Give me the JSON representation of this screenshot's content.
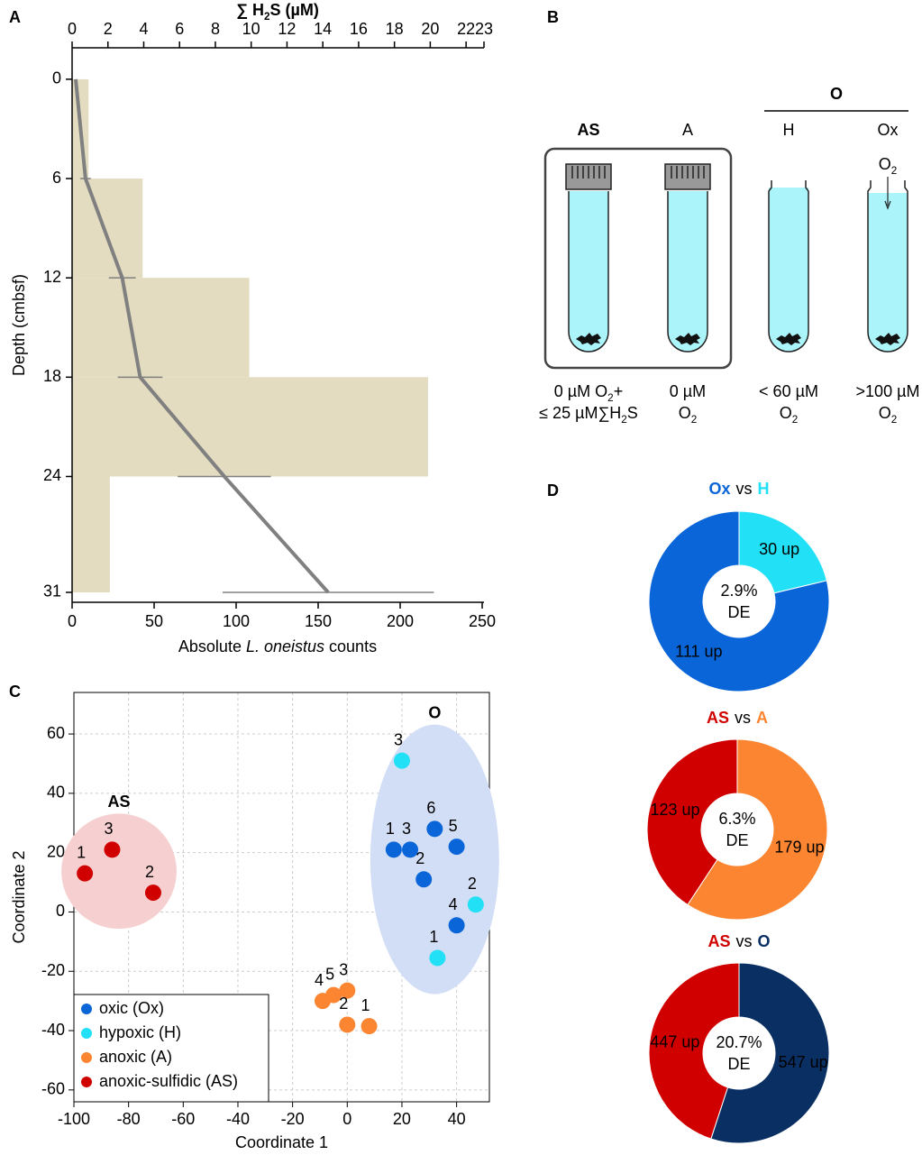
{
  "panel_labels": [
    "A",
    "B",
    "C",
    "D"
  ],
  "chart_data": [
    {
      "type": "depth_profile",
      "x_label": [
        "Absolute ",
        {
          "italic": "L. oneistus"
        },
        " counts"
      ],
      "x2_label": [
        "∑ H",
        {
          "sub": "2"
        },
        "S (µM)"
      ],
      "y_label": "Depth (cmbsf)",
      "bins": [
        0,
        6,
        12,
        18,
        24,
        31
      ],
      "counts": [
        10,
        43,
        108,
        217,
        23
      ],
      "bar_color": "#e3dcc0",
      "xlim": [
        0,
        250
      ],
      "xticks": [
        0,
        50,
        100,
        150,
        200,
        250
      ],
      "x2lim": [
        0,
        23
      ],
      "x2ticks": [
        0,
        2,
        4,
        6,
        8,
        10,
        12,
        14,
        16,
        18,
        20,
        22,
        23
      ],
      "ylim": [
        -1.9,
        31.6
      ],
      "yticks": [
        0,
        6,
        12,
        18,
        24,
        31
      ],
      "y_inverted": true,
      "line": {
        "depth": [
          0,
          6,
          12,
          18,
          24,
          31
        ],
        "values": [
          0.2,
          0.75,
          2.8,
          3.8,
          8.5,
          14.3
        ],
        "errors": [
          0,
          0.3,
          0.75,
          1.25,
          2.6,
          5.9
        ],
        "color": "#808080"
      },
      "x2_color": "#8c8c8c"
    },
    {
      "type": "scatter",
      "x_label": "Coordinate 1",
      "y_label": "Coordinate 2",
      "xlim": [
        -100,
        52
      ],
      "xticks": [
        -100,
        -80,
        -60,
        -40,
        -20,
        0,
        20,
        40
      ],
      "ylim": [
        -64,
        74
      ],
      "yticks": [
        -60,
        -40,
        -20,
        0,
        20,
        40,
        60
      ],
      "grid": true,
      "legend": "bottom-left",
      "series": [
        {
          "name": "oxic (Ox)",
          "color": "#0a66d8",
          "x": [
            17,
            23,
            32,
            40,
            28,
            40
          ],
          "values": [
            21,
            21,
            28,
            22,
            11,
            -4.5
          ],
          "labels": [
            "1",
            "3",
            "6",
            "5",
            "2",
            "4"
          ]
        },
        {
          "name": "hypoxic (H)",
          "color": "#22e0f5",
          "x": [
            20,
            47,
            33
          ],
          "values": [
            51,
            2.5,
            -15.5
          ],
          "labels": [
            "3",
            "2",
            "1"
          ]
        },
        {
          "name": "anoxic (A)",
          "color": "#fb8531",
          "x": [
            -9,
            -5,
            0,
            0,
            8
          ],
          "values": [
            -30,
            -28,
            -26.5,
            -38,
            -38.5
          ],
          "labels": [
            "4",
            "5",
            "3",
            "2",
            "1"
          ]
        },
        {
          "name": "anoxic-sulfidic (AS)",
          "color": "#d00000",
          "x": [
            -96,
            -86,
            -71
          ],
          "values": [
            13,
            21,
            6.5
          ],
          "labels": [
            "1",
            "3",
            "2"
          ]
        }
      ],
      "groups": [
        {
          "label": "AS",
          "color": "#d00000",
          "fill": "#f6d0d0",
          "members": [
            3
          ]
        },
        {
          "label": "O",
          "color": "#0a2f62",
          "fill": "#d2def5",
          "members": [
            0,
            1
          ]
        }
      ]
    },
    {
      "type": "donut",
      "categories": [
        "Ox",
        "H"
      ],
      "connector": "vs",
      "values": [
        111,
        30
      ],
      "value_labels": [
        "111 up",
        "30 up"
      ],
      "colors": [
        "#0a66d8",
        "#22e0f5"
      ],
      "center": [
        "2.9%",
        "DE"
      ]
    },
    {
      "type": "donut",
      "categories": [
        "AS",
        "A"
      ],
      "connector": "vs",
      "values": [
        123,
        179
      ],
      "value_labels": [
        "123 up",
        "179 up"
      ],
      "colors": [
        "#d00000",
        "#fb8531"
      ],
      "center": [
        "6.3%",
        "DE"
      ]
    },
    {
      "type": "donut",
      "categories": [
        "AS",
        "O"
      ],
      "connector": "vs",
      "values": [
        447,
        547
      ],
      "value_labels": [
        "447 up",
        "547 up"
      ],
      "colors": [
        "#d00000",
        "#0a2f62"
      ],
      "center": [
        "20.7%",
        "DE"
      ]
    }
  ],
  "diagram": {
    "groups": [
      {
        "label": "O",
        "members": [
          2,
          3
        ]
      }
    ],
    "tubes": [
      {
        "label": "AS",
        "bold": true,
        "closure": "cap",
        "condition": [
          [
            "0 µM O",
            {
              "sub": "2"
            },
            "+"
          ],
          [
            "≤ 25 µM∑H",
            {
              "sub": "2"
            },
            "S"
          ]
        ]
      },
      {
        "label": "A",
        "bold": false,
        "closure": "cap",
        "condition": [
          [
            "0 µM"
          ],
          [
            "O",
            {
              "sub": "2"
            }
          ]
        ]
      },
      {
        "label": "H",
        "bold": false,
        "closure": "open",
        "condition": [
          [
            "< 60 µM"
          ],
          [
            "O",
            {
              "sub": "2"
            }
          ]
        ]
      },
      {
        "label": "Ox",
        "bold": false,
        "closure": "open",
        "inflow": [
          "O",
          {
            "sub": "2"
          }
        ],
        "condition": [
          [
            ">100 µM"
          ],
          [
            "O",
            {
              "sub": "2"
            }
          ]
        ]
      }
    ]
  }
}
